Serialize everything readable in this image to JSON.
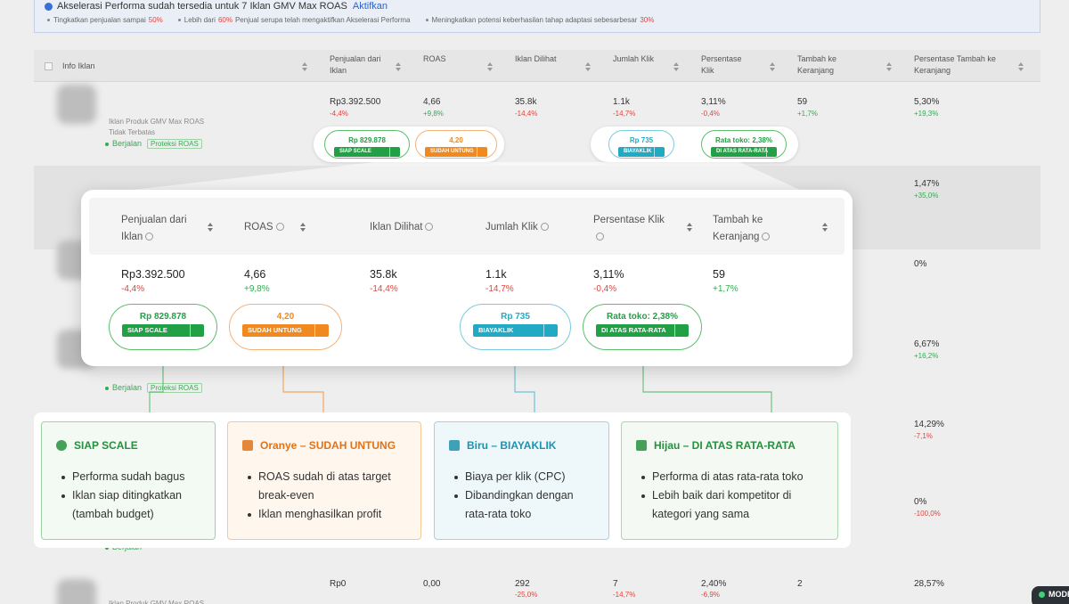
{
  "banner": {
    "title": "Akselerasi Performa sudah tersedia untuk 7 Iklan GMV Max ROAS",
    "link": "Aktifkan",
    "bullets": [
      [
        "Tingkatkan penjualan sampai",
        "50%"
      ],
      [
        "Lebih dari",
        "60%",
        "Penjual serupa telah mengaktifkan Akselerasi Performa"
      ],
      [
        "Meningkatkan potensi keberhasilan tahap adaptasi sebesarbesar",
        "30%"
      ]
    ]
  },
  "table": {
    "columns": [
      "Info Iklan",
      "Penjualan dari Iklan",
      "ROAS",
      "Iklan Dilihat",
      "Jumlah Klik",
      "Persentase Klik",
      "Tambah ke Keranjang",
      "Persentase Tambah ke Keranjang"
    ],
    "first_row": {
      "name": "Iklan Produk GMV Max ROAS",
      "subtitle": "Tidak Terbatas",
      "cells": [
        {
          "value": "Rp3.392.500",
          "change": "-4,4%"
        },
        {
          "value": "4,66",
          "change": "+9,8%"
        },
        {
          "value": "35.8k",
          "change": "-14,4%"
        },
        {
          "value": "1.1k",
          "change": "-14,7%"
        },
        {
          "value": "3,11%",
          "change": "-0,4%"
        },
        {
          "value": "59",
          "change": "+1,7%"
        },
        {
          "value": "5,30%",
          "change": "+19,3%"
        }
      ]
    },
    "status_lines": [
      {
        "status": "Berjalan",
        "tag": "Proteksi ROAS"
      },
      {
        "status": "Berjalan",
        "tag": "Proteksi ROAS"
      },
      {
        "status": "Berjalan"
      }
    ],
    "side_rows": [
      {
        "value": "1,47%",
        "change": "+35,0%"
      },
      {
        "value": "0%"
      },
      {
        "value": "6,67%",
        "change": "+16,2%"
      },
      {
        "value": "14,29%",
        "change": "-7,1%"
      },
      {
        "value": "0%",
        "change": "-100,0%"
      }
    ],
    "last_row": {
      "name": "Iklan Produk GMV Max ROAS",
      "cells": [
        {
          "value": "Rp0"
        },
        {
          "value": "0,00"
        },
        {
          "value": "292",
          "change": "-25,0%"
        },
        {
          "value": "7",
          "change": "-14,7%"
        },
        {
          "value": "2,40%",
          "change": "-6,9%"
        },
        {
          "value": "2"
        },
        {
          "value": "28,57%"
        }
      ]
    }
  },
  "badges": [
    {
      "value": "Rp 829.878",
      "label": "SIAP SCALE"
    },
    {
      "value": "4,20",
      "label": "SUDAH UNTUNG"
    },
    {
      "value": "Rp 735",
      "label": "BIAYAKLIK"
    },
    {
      "value": "Rata toko: 2,38%",
      "label": "DI ATAS RATA-RATA"
    }
  ],
  "cards": [
    {
      "title": "SIAP SCALE",
      "items": [
        "Performa sudah bagus",
        "Iklan siap ditingkatkan (tambah budget)"
      ]
    },
    {
      "title": "Oranye – SUDAH UNTUNG",
      "items": [
        "ROAS sudah di atas target break-even",
        "Iklan menghasilkan profit"
      ]
    },
    {
      "title": "Biru – BIAYAKLIK",
      "items": [
        "Biaya per klik (CPC)",
        "Dibandingkan dengan rata-rata toko"
      ]
    },
    {
      "title": "Hijau – DI ATAS RATA-RATA",
      "items": [
        "Performa di atas rata-rata toko",
        "Lebih baik dari kompetitor di kategori yang sama"
      ]
    }
  ],
  "corner": "MODE"
}
